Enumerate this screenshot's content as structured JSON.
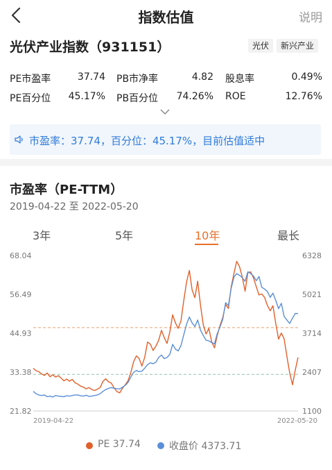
{
  "header": {
    "title": "指数估值",
    "help_label": "说明"
  },
  "index": {
    "name": "光伏产业指数（931151）",
    "tags": [
      "光伏",
      "新兴产业"
    ]
  },
  "metrics": [
    {
      "label": "PE市盈率",
      "value": "37.74"
    },
    {
      "label": "PB市净率",
      "value": "4.82"
    },
    {
      "label": "股息率",
      "value": "0.49%"
    },
    {
      "label": "PE百分位",
      "value": "45.17%"
    },
    {
      "label": "PB百分位",
      "value": "74.26%"
    },
    {
      "label": "ROE",
      "value": "12.76%"
    }
  ],
  "banner": {
    "text": "市盈率：37.74，百分位：45.17%，目前估值适中"
  },
  "chart_section": {
    "title": "市盈率（PE-TTM）",
    "date_range": "2019-04-22 至 2022-05-20",
    "tabs": [
      "3年",
      "5年",
      "10年",
      "最长"
    ],
    "active_tab": "10年"
  },
  "chart_data": {
    "type": "line",
    "x_start_label": "2019-04-22",
    "x_end_label": "2022-05-20",
    "left_ticks": [
      "68.04",
      "56.49",
      "44.93",
      "33.38",
      "21.82"
    ],
    "right_ticks": [
      "6328",
      "5021",
      "3714",
      "2407",
      "1100"
    ],
    "ylim_left": [
      21.82,
      68.04
    ],
    "ylim_right": [
      1100,
      6328
    ],
    "reference_lines": [
      {
        "value": 46.6,
        "color": "#e8a070"
      },
      {
        "value": 32.7,
        "color": "#8fc4a8"
      }
    ],
    "series": [
      {
        "name": "PE",
        "color": "#e0602a",
        "axis": "left",
        "latest": "37.74",
        "values": [
          34.5,
          33.8,
          33.5,
          32.8,
          32.4,
          33.1,
          32.0,
          32.6,
          31.9,
          32.3,
          31.6,
          30.8,
          31.3,
          30.7,
          31.2,
          30.2,
          29.8,
          29.2,
          28.9,
          28.4,
          28.8,
          28.2,
          27.9,
          28.3,
          28.8,
          30.6,
          31.4,
          30.5,
          30.1,
          28.7,
          27.6,
          27.2,
          28.6,
          29.6,
          30.8,
          33.2,
          36.5,
          38.2,
          37.4,
          35.2,
          37.8,
          42.3,
          41.7,
          39.8,
          41.1,
          42.8,
          45.8,
          43.6,
          41.9,
          45.3,
          50.4,
          48.0,
          46.4,
          48.6,
          54.6,
          60.2,
          63.6,
          57.8,
          55.5,
          60.4,
          53.2,
          47.4,
          44.7,
          46.4,
          42.5,
          40.6,
          44.2,
          47.2,
          49.6,
          53.5,
          52.3,
          58.6,
          62.7,
          66.3,
          64.7,
          61.6,
          57.4,
          62.9,
          63.2,
          61.4,
          58.8,
          56.3,
          56.6,
          55.6,
          53.2,
          51.6,
          53.1,
          47.9,
          43.2,
          45.0,
          43.3,
          38.1,
          33.2,
          29.6,
          34.0,
          37.74
        ]
      },
      {
        "name": "收盘价",
        "color": "#5b8fd8",
        "axis": "right",
        "latest": "4373.71",
        "values": [
          1760,
          1680,
          1640,
          1620,
          1640,
          1580,
          1600,
          1570,
          1620,
          1600,
          1590,
          1580,
          1610,
          1600,
          1620,
          1640,
          1640,
          1610,
          1600,
          1630,
          1590,
          1600,
          1620,
          1640,
          1680,
          1760,
          1820,
          1860,
          1890,
          1860,
          1850,
          1840,
          1900,
          1960,
          2060,
          2240,
          2400,
          2460,
          2420,
          2440,
          2540,
          2660,
          2720,
          2690,
          2740,
          2900,
          2980,
          2860,
          2900,
          3000,
          3340,
          3180,
          3120,
          3300,
          3660,
          4020,
          4260,
          4060,
          3940,
          4160,
          3820,
          3640,
          3480,
          3460,
          3400,
          3360,
          3700,
          3920,
          4180,
          4740,
          4640,
          5220,
          5600,
          5720,
          5660,
          5580,
          5460,
          5780,
          5720,
          5640,
          5480,
          5620,
          5260,
          5200,
          5120,
          4920,
          5060,
          4820,
          4540,
          4720,
          4280,
          4160,
          4040,
          4220,
          4380,
          4373.71
        ]
      }
    ],
    "legend": [
      {
        "label": "PE",
        "value": "37.74",
        "color": "#e0602a"
      },
      {
        "label": "收盘价",
        "value": "4373.71",
        "color": "#5b8fd8"
      }
    ]
  }
}
